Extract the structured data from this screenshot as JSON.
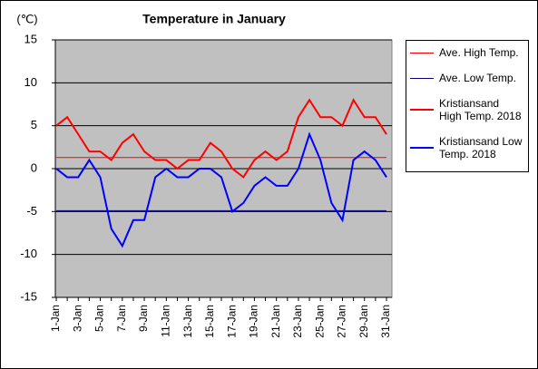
{
  "chart_data": {
    "type": "line",
    "title": "Temperature in January",
    "y_label": "(℃)",
    "categories": [
      "1-Jan",
      null,
      "3-Jan",
      null,
      "5-Jan",
      null,
      "7-Jan",
      null,
      "9-Jan",
      null,
      "11-Jan",
      null,
      "13-Jan",
      null,
      "15-Jan",
      null,
      "17-Jan",
      null,
      "19-Jan",
      null,
      "21-Jan",
      null,
      "23-Jan",
      null,
      "25-Jan",
      null,
      "27-Jan",
      null,
      "29-Jan",
      null,
      "31-Jan"
    ],
    "ylim": [
      -15,
      15
    ],
    "yticks": [
      15,
      10,
      5,
      0,
      -5,
      -10,
      -15
    ],
    "grid": true,
    "legend": "right",
    "series": [
      {
        "name": "Ave. High Temp.",
        "color": "#ff0000",
        "line_width": 1,
        "values": [
          1.3,
          1.3,
          1.3,
          1.3,
          1.3,
          1.3,
          1.3,
          1.3,
          1.3,
          1.3,
          1.3,
          1.3,
          1.3,
          1.3,
          1.3,
          1.3,
          1.3,
          1.3,
          1.3,
          1.3,
          1.3,
          1.3,
          1.3,
          1.3,
          1.3,
          1.3,
          1.3,
          1.3,
          1.3,
          1.3,
          1.3
        ]
      },
      {
        "name": "Ave. Low Temp.",
        "color": "#000080",
        "line_width": 1,
        "values": [
          -4.9,
          -4.9,
          -4.9,
          -4.9,
          -4.9,
          -4.9,
          -4.9,
          -4.9,
          -4.9,
          -4.9,
          -4.9,
          -4.9,
          -4.9,
          -4.9,
          -4.9,
          -4.9,
          -4.9,
          -4.9,
          -4.9,
          -4.9,
          -4.9,
          -4.9,
          -4.9,
          -4.9,
          -4.9,
          -4.9,
          -4.9,
          -4.9,
          -4.9,
          -4.9,
          -4.9
        ]
      },
      {
        "name": "Kristiansand High Temp. 2018",
        "color": "#ff0000",
        "line_width": 2,
        "values": [
          5,
          6,
          4,
          2,
          2,
          1,
          3,
          4,
          2,
          1,
          1,
          0,
          1,
          1,
          3,
          2,
          0,
          -1,
          1,
          2,
          1,
          2,
          6,
          8,
          6,
          6,
          5,
          8,
          6,
          6,
          4
        ]
      },
      {
        "name": "Kristiansand Low Temp. 2018",
        "color": "#0000ff",
        "line_width": 2,
        "values": [
          0,
          -1,
          -1,
          1,
          -1,
          -7,
          -9,
          -6,
          -6,
          -1,
          0,
          -1,
          -1,
          0,
          0,
          -1,
          -5,
          -4,
          -2,
          -1,
          -2,
          -2,
          0,
          4,
          1,
          -4,
          -6,
          1,
          2,
          1,
          -1
        ]
      }
    ]
  }
}
